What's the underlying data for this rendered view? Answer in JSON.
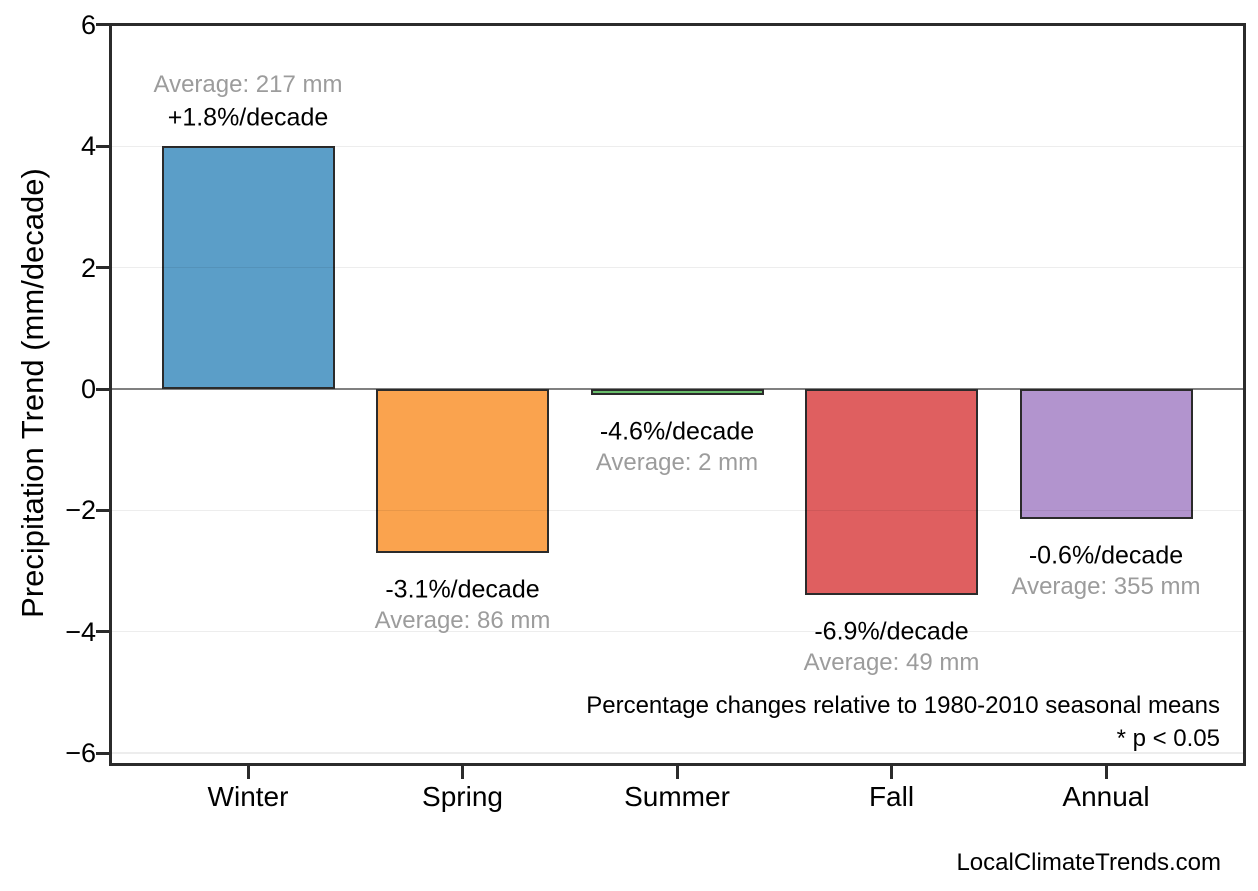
{
  "page": {
    "background": "#ffffff"
  },
  "colors": {
    "frame": "#2b2b2b",
    "bar_border": "#2b2b2b",
    "zero_line": "#808080",
    "grid_line": "rgba(0,0,0,0.07)",
    "tick": "#2b2b2b",
    "text_black": "#000000",
    "text_gray": "#9c9c9c"
  },
  "chart_data": {
    "type": "bar",
    "title": "",
    "ylabel": "Precipitation Trend (mm/decade)",
    "xlabel": "",
    "ylim": [
      -6,
      6
    ],
    "grid": "horizontal light-gray lines every 2 units; solid gray line at 0",
    "legend_visible": false,
    "yticks": [
      {
        "value": 6,
        "label": "6"
      },
      {
        "value": 4,
        "label": "4"
      },
      {
        "value": 2,
        "label": "2"
      },
      {
        "value": 0,
        "label": "0"
      },
      {
        "value": -2,
        "label": "−2"
      },
      {
        "value": -4,
        "label": "−4"
      },
      {
        "value": -6,
        "label": "−6"
      }
    ],
    "gridline_values": [
      4,
      2,
      -2,
      -4,
      -6
    ],
    "categories": [
      "Winter",
      "Spring",
      "Summer",
      "Fall",
      "Annual"
    ],
    "bars": [
      {
        "category": "Winter",
        "trend_mm_per_decade": 4.0,
        "percent_per_decade": 1.8,
        "average_mm": 217,
        "percent_label": "+1.8%/decade",
        "average_label": "Average: 217 mm",
        "color": "#5B9EC8"
      },
      {
        "category": "Spring",
        "trend_mm_per_decade": -2.7,
        "percent_per_decade": -3.1,
        "average_mm": 86,
        "percent_label": "-3.1%/decade",
        "average_label": "Average: 86 mm",
        "color": "#FAA34E"
      },
      {
        "category": "Summer",
        "trend_mm_per_decade": -0.1,
        "percent_per_decade": -4.6,
        "average_mm": 2,
        "percent_label": "-4.6%/decade",
        "average_label": "Average: 2 mm",
        "color": "#69BD6B"
      },
      {
        "category": "Fall",
        "trend_mm_per_decade": -3.4,
        "percent_per_decade": -6.9,
        "average_mm": 49,
        "percent_label": "-6.9%/decade",
        "average_label": "Average: 49 mm",
        "color": "#DF5F60"
      },
      {
        "category": "Annual",
        "trend_mm_per_decade": -2.15,
        "percent_per_decade": -0.6,
        "average_mm": 355,
        "percent_label": "-0.6%/decade",
        "average_label": "Average: 355 mm",
        "color": "#B294CE"
      }
    ],
    "annotations": {
      "note": "Percentage changes relative to 1980-2010 seasonal means",
      "significance": "* p < 0.05"
    }
  },
  "footer": {
    "brand": "LocalClimateTrends.com"
  }
}
